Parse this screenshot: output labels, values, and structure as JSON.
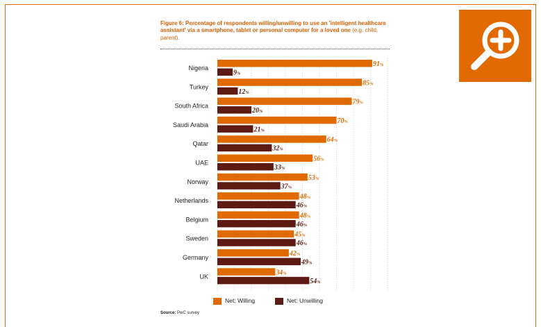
{
  "figure": {
    "title_bold": "Figure 6: Percentage of respondents willing/unwilling to use an 'intelligent healthcare assistant' via a smartphone, tablet or personal computer for a loved one",
    "title_light": " (e.g. child, parent).",
    "source_label": "Source:",
    "source_text": " PwC survey",
    "zoom_icon": "magnifier-plus-icon"
  },
  "colors": {
    "willing": "#e06a00",
    "unwilling": "#5c1a12",
    "accent": "#e06a00"
  },
  "chart_data": {
    "type": "bar",
    "orientation": "horizontal",
    "categories": [
      "Nigeria",
      "Turkey",
      "South Africa",
      "Saudi Arabia",
      "Qatar",
      "UAE",
      "Norway",
      "Netherlands",
      "Belgium",
      "Sweden",
      "Germany",
      "UK"
    ],
    "series": [
      {
        "name": "Net: Willing",
        "values": [
          91,
          85,
          79,
          70,
          64,
          56,
          53,
          48,
          48,
          45,
          42,
          34
        ]
      },
      {
        "name": "Net: Unwilling",
        "values": [
          9,
          12,
          20,
          21,
          32,
          33,
          37,
          46,
          46,
          46,
          49,
          54
        ]
      }
    ],
    "value_suffix": "%",
    "xlim": [
      0,
      100
    ],
    "grid": true,
    "legend_position": "bottom"
  }
}
